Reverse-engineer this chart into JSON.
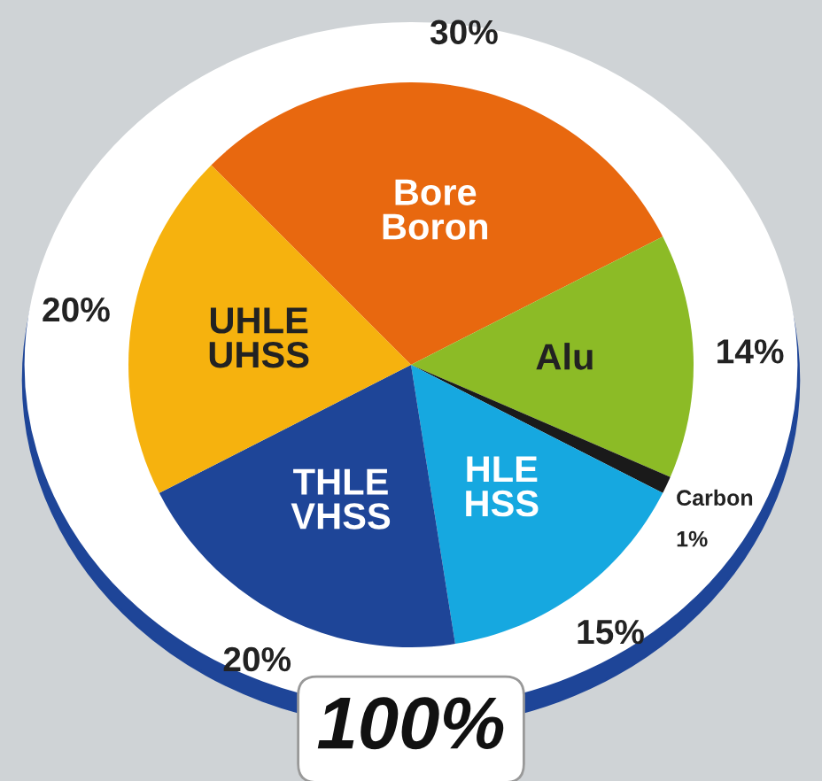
{
  "chart_data": {
    "type": "pie",
    "categories": [
      "Bore\nBoron",
      "Alu",
      "Carbon",
      "HLE\nHSS",
      "THLE\nVHSS",
      "UHLE\nUHSS"
    ],
    "values": [
      30,
      14,
      1,
      15,
      20,
      20
    ],
    "value_labels": [
      "30%",
      "14%",
      "1%",
      "15%",
      "20%",
      "20%"
    ],
    "colors": [
      "#e8680f",
      "#8cbb26",
      "#1a1a1a",
      "#16a8e0",
      "#1e4598",
      "#f6b20e"
    ],
    "annotations": [
      "100%"
    ],
    "legend": false
  }
}
